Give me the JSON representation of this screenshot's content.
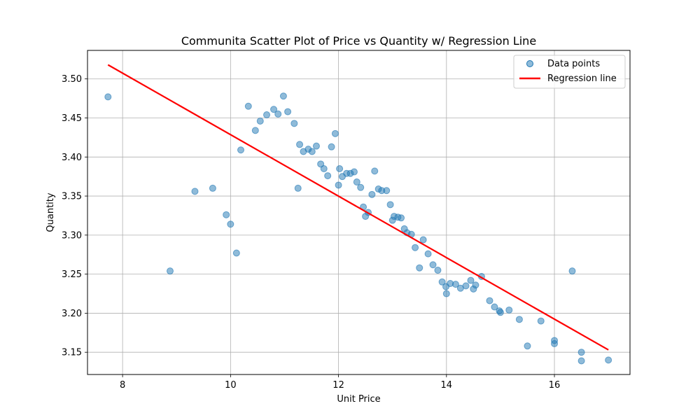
{
  "chart_data": {
    "type": "scatter",
    "title": "Communita Scatter Plot of Price vs Quantity w/ Regression Line",
    "xlabel": "Unit Price",
    "ylabel": "Quantity",
    "xlim": [
      7.35,
      17.4
    ],
    "ylim": [
      3.1215,
      3.5365
    ],
    "xticks": [
      8,
      10,
      12,
      14,
      16
    ],
    "xtick_labels": [
      "8",
      "10",
      "12",
      "14",
      "16"
    ],
    "yticks": [
      3.15,
      3.2,
      3.25,
      3.3,
      3.35,
      3.4,
      3.45,
      3.5
    ],
    "ytick_labels": [
      "3.15",
      "3.20",
      "3.25",
      "3.30",
      "3.35",
      "3.40",
      "3.45",
      "3.50"
    ],
    "grid": true,
    "legend_position": "top-right",
    "series": [
      {
        "name": "Data points",
        "kind": "scatter",
        "color": "#1f77b4",
        "points": [
          [
            7.73,
            3.477
          ],
          [
            8.88,
            3.254
          ],
          [
            9.34,
            3.356
          ],
          [
            9.67,
            3.36
          ],
          [
            9.92,
            3.326
          ],
          [
            10.0,
            3.314
          ],
          [
            10.11,
            3.277
          ],
          [
            10.19,
            3.409
          ],
          [
            10.33,
            3.465
          ],
          [
            10.46,
            3.434
          ],
          [
            10.55,
            3.446
          ],
          [
            10.67,
            3.454
          ],
          [
            10.8,
            3.461
          ],
          [
            10.88,
            3.455
          ],
          [
            10.98,
            3.478
          ],
          [
            11.06,
            3.458
          ],
          [
            11.18,
            3.443
          ],
          [
            11.25,
            3.36
          ],
          [
            11.28,
            3.416
          ],
          [
            11.35,
            3.407
          ],
          [
            11.44,
            3.41
          ],
          [
            11.51,
            3.407
          ],
          [
            11.59,
            3.414
          ],
          [
            11.67,
            3.391
          ],
          [
            11.73,
            3.385
          ],
          [
            11.8,
            3.376
          ],
          [
            11.87,
            3.413
          ],
          [
            11.94,
            3.43
          ],
          [
            12.0,
            3.364
          ],
          [
            12.02,
            3.385
          ],
          [
            12.07,
            3.375
          ],
          [
            12.15,
            3.379
          ],
          [
            12.22,
            3.379
          ],
          [
            12.29,
            3.381
          ],
          [
            12.34,
            3.368
          ],
          [
            12.41,
            3.361
          ],
          [
            12.46,
            3.336
          ],
          [
            12.5,
            3.324
          ],
          [
            12.55,
            3.329
          ],
          [
            12.62,
            3.352
          ],
          [
            12.67,
            3.382
          ],
          [
            12.74,
            3.359
          ],
          [
            12.8,
            3.357
          ],
          [
            12.89,
            3.357
          ],
          [
            12.96,
            3.339
          ],
          [
            13.0,
            3.319
          ],
          [
            13.03,
            3.324
          ],
          [
            13.1,
            3.323
          ],
          [
            13.16,
            3.322
          ],
          [
            13.22,
            3.308
          ],
          [
            13.27,
            3.303
          ],
          [
            13.35,
            3.301
          ],
          [
            13.42,
            3.284
          ],
          [
            13.5,
            3.258
          ],
          [
            13.57,
            3.294
          ],
          [
            13.66,
            3.276
          ],
          [
            13.75,
            3.262
          ],
          [
            13.84,
            3.255
          ],
          [
            13.92,
            3.24
          ],
          [
            13.99,
            3.234
          ],
          [
            14.0,
            3.225
          ],
          [
            14.07,
            3.238
          ],
          [
            14.17,
            3.237
          ],
          [
            14.26,
            3.232
          ],
          [
            14.36,
            3.235
          ],
          [
            14.45,
            3.242
          ],
          [
            14.5,
            3.231
          ],
          [
            14.54,
            3.236
          ],
          [
            14.65,
            3.247
          ],
          [
            14.8,
            3.216
          ],
          [
            14.89,
            3.208
          ],
          [
            14.98,
            3.203
          ],
          [
            15.0,
            3.201
          ],
          [
            15.16,
            3.204
          ],
          [
            15.35,
            3.192
          ],
          [
            15.5,
            3.158
          ],
          [
            15.75,
            3.19
          ],
          [
            16.0,
            3.165
          ],
          [
            16.0,
            3.161
          ],
          [
            16.33,
            3.254
          ],
          [
            16.5,
            3.15
          ],
          [
            16.5,
            3.139
          ],
          [
            17.0,
            3.14
          ]
        ]
      },
      {
        "name": "Regression line",
        "kind": "line",
        "color": "#ff0000",
        "points": [
          [
            7.73,
            3.518
          ],
          [
            17.0,
            3.153
          ]
        ]
      }
    ]
  }
}
